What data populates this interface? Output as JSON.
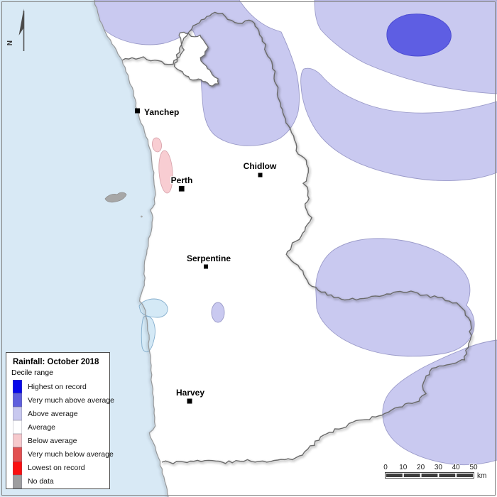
{
  "legend": {
    "title": "Rainfall: October 2018",
    "subtitle": "Decile range",
    "items": [
      {
        "label": "Highest on record",
        "color": "#0808ea"
      },
      {
        "label": "Very much above average",
        "color": "#5f5fdd"
      },
      {
        "label": "Above average",
        "color": "#c8c8ef"
      },
      {
        "label": "Average",
        "color": "#ffffff"
      },
      {
        "label": "Below average",
        "color": "#f6c9cc"
      },
      {
        "label": "Very much below average",
        "color": "#e25050"
      },
      {
        "label": "Lowest on record",
        "color": "#fa0f0f"
      },
      {
        "label": "No data",
        "color": "#9d9d9f"
      }
    ]
  },
  "cities": [
    {
      "name": "Yanchep"
    },
    {
      "name": "Perth"
    },
    {
      "name": "Chidlow"
    },
    {
      "name": "Serpentine"
    },
    {
      "name": "Harvey"
    }
  ],
  "north_arrow": {
    "label": "N"
  },
  "scale_bar": {
    "ticks": [
      "0",
      "10",
      "20",
      "30",
      "40",
      "50"
    ],
    "unit": "km"
  },
  "map_colors": {
    "ocean": "#d8e9f5",
    "land": "#ffffff",
    "above_average": "#c9c9f0",
    "very_much_above_average": "#5e5ee3",
    "below_average": "#f8cdd2",
    "water_body": "#d4e9f6",
    "water_outline": "#84aecd",
    "island": "#a7a7a7",
    "boundary": "#6a6a6a",
    "coast": "#96989a",
    "patch_outline": "#9b9bc9"
  }
}
